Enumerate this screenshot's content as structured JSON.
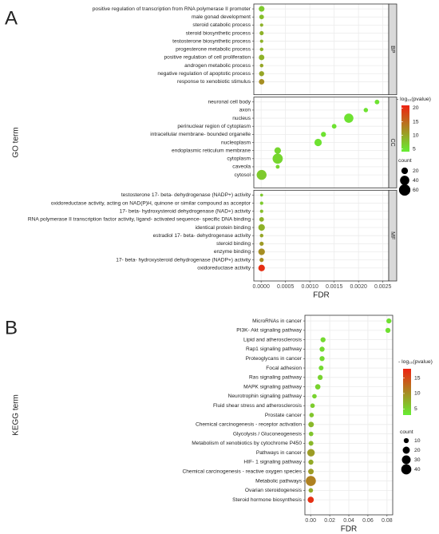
{
  "chart_data": [
    {
      "type": "scatter",
      "panel_label": "A",
      "x_label": "FDR",
      "y_label": "GO term",
      "xlim": [
        -0.00015,
        0.00262
      ],
      "xticks": [
        {
          "value": 0,
          "label": "0.0000"
        },
        {
          "value": 0.0005,
          "label": "0.0005"
        },
        {
          "value": 0.001,
          "label": "0.0010"
        },
        {
          "value": 0.0015,
          "label": "0.0015"
        },
        {
          "value": 0.002,
          "label": "0.0020"
        },
        {
          "value": 0.0025,
          "label": "0.0025"
        }
      ],
      "grid": true,
      "color_scale": {
        "title": "- log₁₀(pvalue)",
        "lim": [
          4,
          21
        ],
        "ticks": [
          5,
          10,
          15,
          20
        ],
        "low_color": "#66ee33",
        "high_color": "#ee2211"
      },
      "size_legend": {
        "title": "count",
        "values": [
          20,
          40,
          60
        ]
      },
      "facets": [
        {
          "name": "BP",
          "terms": [
            "positive regulation of transcription from RNA polymerase II promoter",
            "male gonad development",
            "steroid catabolic process",
            "steroid biosynthetic process",
            "testosterone biosynthetic process",
            "progesterone metabolic process",
            "positive regulation of cell proliferation",
            "androgen metabolic process",
            "negative regulation of apoptotic process",
            "response to xenobiotic stimulus"
          ],
          "fdr": [
            1e-05,
            1e-05,
            1e-05,
            1e-05,
            1e-05,
            1e-05,
            1e-05,
            1e-05,
            1e-05,
            1e-05
          ],
          "neg_log10_p": [
            7,
            8,
            9,
            9,
            9,
            9,
            9,
            10,
            10,
            12
          ],
          "count": [
            15,
            10,
            5,
            8,
            5,
            6,
            14,
            6,
            12,
            14
          ]
        },
        {
          "name": "CC",
          "terms": [
            "neuronal cell body",
            "axon",
            "nucleus",
            "perinuclear region of cytoplasm",
            "intracellular membrane- bounded organelle",
            "nucleoplasm",
            "endoplasmic reticulum membrane",
            "cytoplasm",
            "caveola",
            "cytosol"
          ],
          "fdr": [
            0.00238,
            0.00215,
            0.0018,
            0.0015,
            0.00128,
            0.00117,
            0.00034,
            0.00034,
            0.00034,
            1e-05
          ],
          "neg_log10_p": [
            5,
            5,
            5,
            5,
            5,
            5,
            6,
            6,
            6,
            7
          ],
          "count": [
            10,
            9,
            40,
            10,
            12,
            25,
            20,
            48,
            7,
            45
          ]
        },
        {
          "name": "MF",
          "terms": [
            "testosterone 17- beta- dehydrogenase (NADP+) activity",
            "oxidoreductase activity, acting on NAD(P)H, quinone or similar compound as acceptor",
            "17- beta- hydroxysteroid dehydrogenase (NAD+) activity",
            "RNA polymerase II transcription factor activity, ligand- activated sequence- specific DNA binding",
            "identical protein binding",
            "estradiol 17- beta- dehydrogenase activity",
            "steroid binding",
            "enzyme binding",
            "17- beta- hydroxysteroid dehydrogenase (NADP+) activity",
            "oxidoreductase activity"
          ],
          "fdr": [
            1e-05,
            1e-05,
            1e-05,
            1e-05,
            1e-05,
            1e-05,
            1e-05,
            1e-05,
            1e-05,
            1e-05
          ],
          "neg_log10_p": [
            7,
            7,
            8,
            9,
            9,
            10,
            11,
            12,
            12,
            20
          ],
          "count": [
            4,
            5,
            5,
            10,
            20,
            6,
            8,
            20,
            8,
            20
          ]
        }
      ]
    },
    {
      "type": "scatter",
      "panel_label": "B",
      "x_label": "FDR",
      "y_label": "KEGG term",
      "xlim": [
        -0.006,
        0.086
      ],
      "xticks": [
        {
          "value": 0,
          "label": "0.00"
        },
        {
          "value": 0.02,
          "label": "0.02"
        },
        {
          "value": 0.04,
          "label": "0.04"
        },
        {
          "value": 0.06,
          "label": "0.06"
        },
        {
          "value": 0.08,
          "label": "0.08"
        }
      ],
      "grid": true,
      "color_scale": {
        "title": "- log₁₀(pvalue)",
        "lim": [
          3,
          18
        ],
        "ticks": [
          5,
          10,
          15
        ],
        "low_color": "#66ee33",
        "high_color": "#ee2211"
      },
      "size_legend": {
        "title": "count",
        "values": [
          10,
          20,
          30,
          40
        ]
      },
      "facets": [
        {
          "terms": [
            "MicroRNAs in cancer",
            "PI3K- Akt signaling pathway",
            "Lipid and atherosclerosis",
            "Rap1 signaling pathway",
            "Proteoglycans in cancer",
            "Focal adhesion",
            "Ras signaling pathway",
            "MAPK signaling pathway",
            "Neurotrophin signaling pathway",
            "Fluid shear stress and atherosclerosis",
            "Prostate cancer",
            "Chemical carcinogenesis -  receptor activation",
            "Glycolysis / Gluconeogenesis",
            "Metabolism of xenobiotics by cytochrome P450",
            "Pathways in cancer",
            "HIF- 1 signaling pathway",
            "Chemical carcinogenesis -  reactive oxygen species",
            "Metabolic pathways",
            "Ovarian steroidogenesis",
            "Steroid hormone biosynthesis"
          ],
          "fdr": [
            0.082,
            0.081,
            0.013,
            0.012,
            0.012,
            0.011,
            0.01,
            0.0075,
            0.004,
            0.002,
            0.001,
            0.0005,
            0.0005,
            0.0004,
            0.0004,
            0.0003,
            0.0003,
            0.0002,
            0.0002,
            0.0001
          ],
          "neg_log10_p": [
            4,
            4,
            4.5,
            4.5,
            4.5,
            4.5,
            5,
            5,
            5,
            5.5,
            6,
            7,
            6,
            7,
            9,
            8,
            9,
            11,
            8,
            17
          ],
          "count": [
            10,
            10,
            10,
            10,
            10,
            9,
            10,
            11,
            8,
            8,
            8,
            12,
            8,
            9,
            22,
            10,
            12,
            40,
            8,
            15
          ]
        }
      ]
    }
  ]
}
